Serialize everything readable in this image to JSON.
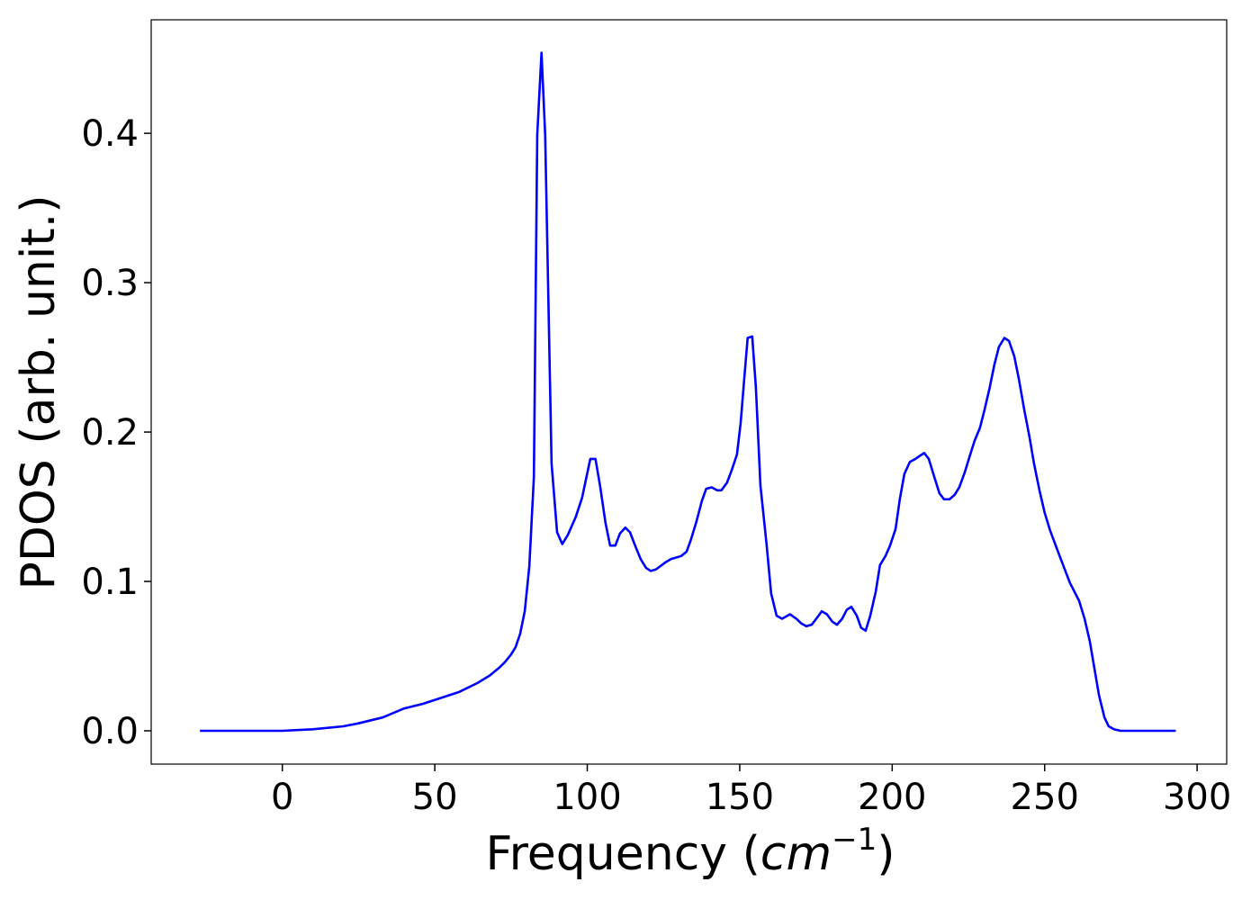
{
  "chart_data": {
    "type": "line",
    "xlabel": {
      "text": "Frequency (",
      "unit": "cm",
      "exponent": "−1",
      "close": ")"
    },
    "ylabel": "PDOS (arb. unit.)",
    "x": [
      -27,
      0,
      10,
      20,
      25,
      33,
      40,
      46,
      52,
      58,
      64,
      68,
      71,
      73,
      75,
      76.5,
      78,
      79.5,
      81,
      82.5,
      83.6,
      85,
      86.2,
      88.3,
      90.1,
      91.8,
      93.6,
      96.2,
      98.3,
      101,
      102.7,
      104.2,
      106,
      107.5,
      109.2,
      110.7,
      112.5,
      114,
      115.7,
      117.5,
      119.3,
      120.8,
      122.5,
      125.8,
      127.5,
      130.8,
      132.6,
      134,
      135.8,
      137.6,
      139,
      140.8,
      142.6,
      144,
      145.8,
      147.3,
      149.1,
      150.3,
      151.5,
      152.6,
      154.1,
      155.3,
      156.8,
      158.8,
      160.3,
      162.1,
      163.9,
      166.5,
      168.6,
      170.1,
      171.8,
      173.6,
      175.1,
      176.9,
      178.6,
      180.4,
      181.9,
      183.6,
      185.1,
      186.6,
      188.4,
      189.8,
      191.3,
      192.8,
      194.6,
      196,
      197.8,
      199.3,
      201.1,
      202.5,
      204,
      205.8,
      207.6,
      209,
      210.5,
      212,
      213.8,
      215.5,
      217,
      218.8,
      220.5,
      222,
      223.8,
      225.3,
      227,
      228.8,
      230.3,
      232,
      233.5,
      235,
      236.8,
      238.3,
      240,
      241.5,
      243.3,
      245,
      246.5,
      248.3,
      250,
      251.8,
      255.1,
      258.3,
      261.3,
      263.1,
      264.8,
      266.3,
      267.8,
      269.6,
      271,
      272.8,
      274.9,
      293
    ],
    "series": [
      {
        "name": "PDOS",
        "color": "#0000ff",
        "values": [
          0,
          0,
          0.001,
          0.003,
          0.005,
          0.009,
          0.015,
          0.018,
          0.022,
          0.026,
          0.032,
          0.037,
          0.042,
          0.046,
          0.051,
          0.056,
          0.065,
          0.08,
          0.11,
          0.17,
          0.399,
          0.454,
          0.399,
          0.179,
          0.133,
          0.125,
          0.131,
          0.143,
          0.156,
          0.182,
          0.182,
          0.164,
          0.139,
          0.124,
          0.124,
          0.132,
          0.136,
          0.133,
          0.124,
          0.115,
          0.109,
          0.107,
          0.108,
          0.113,
          0.115,
          0.117,
          0.12,
          0.128,
          0.14,
          0.154,
          0.162,
          0.163,
          0.161,
          0.161,
          0.166,
          0.174,
          0.185,
          0.206,
          0.236,
          0.263,
          0.264,
          0.23,
          0.164,
          0.125,
          0.092,
          0.077,
          0.075,
          0.078,
          0.075,
          0.072,
          0.07,
          0.071,
          0.075,
          0.08,
          0.078,
          0.073,
          0.071,
          0.075,
          0.081,
          0.083,
          0.077,
          0.069,
          0.067,
          0.077,
          0.093,
          0.111,
          0.117,
          0.124,
          0.135,
          0.155,
          0.172,
          0.18,
          0.182,
          0.184,
          0.186,
          0.182,
          0.17,
          0.159,
          0.155,
          0.155,
          0.158,
          0.163,
          0.173,
          0.183,
          0.194,
          0.203,
          0.215,
          0.23,
          0.245,
          0.257,
          0.263,
          0.261,
          0.251,
          0.236,
          0.215,
          0.197,
          0.179,
          0.161,
          0.146,
          0.134,
          0.116,
          0.099,
          0.087,
          0.075,
          0.06,
          0.042,
          0.024,
          0.009,
          0.003,
          0.001,
          0,
          0
        ]
      }
    ],
    "xlim": [
      -43,
      309.7
    ],
    "ylim": [
      -0.0223,
      0.476
    ],
    "xticks": [
      0,
      50,
      100,
      150,
      200,
      250,
      300
    ],
    "yticks": [
      {
        "value": 0,
        "label": "0.0"
      },
      0.1,
      0.2,
      0.3,
      0.4
    ],
    "grid": false
  }
}
